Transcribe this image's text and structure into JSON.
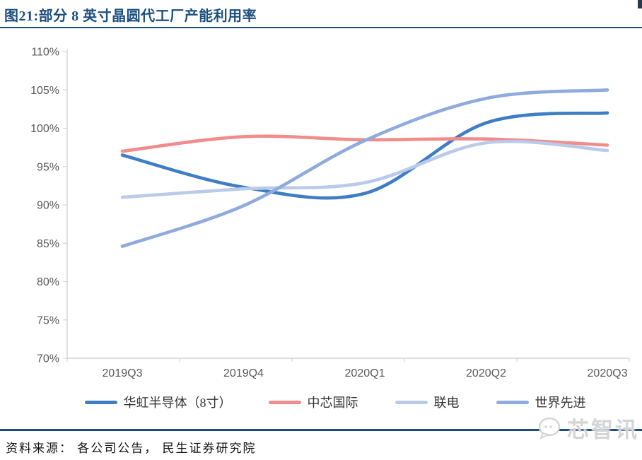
{
  "page": {
    "title": "图21:部分 8 英寸晶圆代工厂产能利用率"
  },
  "footer": {
    "source": "资料来源： 各公司公告， 民生证券研究院"
  },
  "watermark": {
    "text": "芯智讯"
  },
  "theme": {
    "title_color": "#1C4E7E",
    "rule_color": "#1C4E7E",
    "axis_color": "#d4d4d4",
    "tick_label_color": "#595959",
    "legend_text_color": "#333333",
    "background": "#ffffff"
  },
  "chart_data": {
    "type": "line",
    "smooth": true,
    "grid": false,
    "legend_position": "bottom",
    "title": "",
    "xlabel": "",
    "ylabel": "",
    "categories": [
      "2019Q3",
      "2019Q4",
      "2020Q1",
      "2020Q2",
      "2020Q3"
    ],
    "ylim": [
      70,
      110
    ],
    "ytick_step": 5,
    "ytick_suffix": "%",
    "series": [
      {
        "name": "华虹半导体（8寸）",
        "color": "#3F7DC4",
        "values": [
          96.5,
          92.3,
          91.5,
          100.7,
          102.0
        ]
      },
      {
        "name": "中芯国际",
        "color": "#F18C8C",
        "values": [
          97.0,
          98.9,
          98.5,
          98.6,
          97.8
        ]
      },
      {
        "name": "联电",
        "color": "#B9CBE8",
        "values": [
          91.0,
          92.1,
          92.9,
          98.1,
          97.1
        ]
      },
      {
        "name": "世界先进",
        "color": "#8FAADC",
        "values": [
          84.6,
          89.9,
          98.4,
          103.9,
          105.0
        ]
      }
    ]
  }
}
